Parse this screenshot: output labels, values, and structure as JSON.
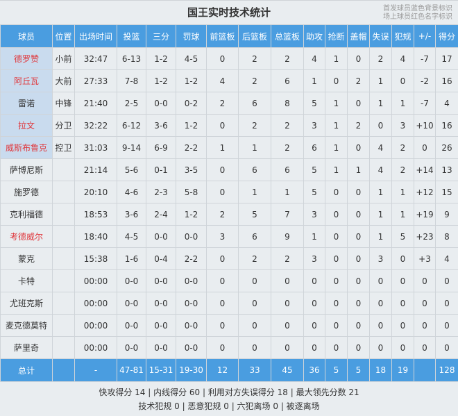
{
  "title": "国王实时技术统计",
  "legend": [
    "首发球员蓝色背景标识",
    "场上球员红色名字标识"
  ],
  "colors": {
    "header": "#4a9de0",
    "starter_bg": "#c9dbee",
    "oncourt_text": "#e0393e"
  },
  "columns": [
    "球员",
    "位置",
    "出场时间",
    "投篮",
    "三分",
    "罚球",
    "前篮板",
    "后篮板",
    "总篮板",
    "助攻",
    "抢断",
    "盖帽",
    "失误",
    "犯规",
    "+/-",
    "得分"
  ],
  "players": [
    {
      "starter": true,
      "oncourt": true,
      "cells": [
        "德罗赞",
        "小前",
        "32:47",
        "6-13",
        "1-2",
        "4-5",
        "0",
        "2",
        "2",
        "4",
        "1",
        "0",
        "2",
        "4",
        "-7",
        "17"
      ]
    },
    {
      "starter": true,
      "oncourt": true,
      "cells": [
        "阿丘瓦",
        "大前",
        "27:33",
        "7-8",
        "1-2",
        "1-2",
        "4",
        "2",
        "6",
        "1",
        "0",
        "2",
        "1",
        "0",
        "-2",
        "16"
      ]
    },
    {
      "starter": true,
      "oncourt": false,
      "cells": [
        "雷诺",
        "中锋",
        "21:40",
        "2-5",
        "0-0",
        "0-2",
        "2",
        "6",
        "8",
        "5",
        "1",
        "0",
        "1",
        "1",
        "-7",
        "4"
      ]
    },
    {
      "starter": true,
      "oncourt": true,
      "cells": [
        "拉文",
        "分卫",
        "32:22",
        "6-12",
        "3-6",
        "1-2",
        "0",
        "2",
        "2",
        "3",
        "1",
        "2",
        "0",
        "3",
        "+10",
        "16"
      ]
    },
    {
      "starter": true,
      "oncourt": true,
      "cells": [
        "威斯布鲁克",
        "控卫",
        "31:03",
        "9-14",
        "6-9",
        "2-2",
        "1",
        "1",
        "2",
        "6",
        "1",
        "0",
        "4",
        "2",
        "0",
        "26"
      ]
    },
    {
      "starter": false,
      "oncourt": false,
      "cells": [
        "萨博尼斯",
        "",
        "21:14",
        "5-6",
        "0-1",
        "3-5",
        "0",
        "6",
        "6",
        "5",
        "1",
        "1",
        "4",
        "2",
        "+14",
        "13"
      ]
    },
    {
      "starter": false,
      "oncourt": false,
      "cells": [
        "施罗德",
        "",
        "20:10",
        "4-6",
        "2-3",
        "5-8",
        "0",
        "1",
        "1",
        "5",
        "0",
        "0",
        "1",
        "1",
        "+12",
        "15"
      ]
    },
    {
      "starter": false,
      "oncourt": false,
      "cells": [
        "克利福德",
        "",
        "18:53",
        "3-6",
        "2-4",
        "1-2",
        "2",
        "5",
        "7",
        "3",
        "0",
        "0",
        "1",
        "1",
        "+19",
        "9"
      ]
    },
    {
      "starter": false,
      "oncourt": true,
      "cells": [
        "考德威尔",
        "",
        "18:40",
        "4-5",
        "0-0",
        "0-0",
        "3",
        "6",
        "9",
        "1",
        "0",
        "0",
        "1",
        "5",
        "+23",
        "8"
      ]
    },
    {
      "starter": false,
      "oncourt": false,
      "cells": [
        "蒙克",
        "",
        "15:38",
        "1-6",
        "0-4",
        "2-2",
        "0",
        "2",
        "2",
        "3",
        "0",
        "0",
        "3",
        "0",
        "+3",
        "4"
      ]
    },
    {
      "starter": false,
      "oncourt": false,
      "cells": [
        "卡特",
        "",
        "00:00",
        "0-0",
        "0-0",
        "0-0",
        "0",
        "0",
        "0",
        "0",
        "0",
        "0",
        "0",
        "0",
        "0",
        "0"
      ]
    },
    {
      "starter": false,
      "oncourt": false,
      "cells": [
        "尤班克斯",
        "",
        "00:00",
        "0-0",
        "0-0",
        "0-0",
        "0",
        "0",
        "0",
        "0",
        "0",
        "0",
        "0",
        "0",
        "0",
        "0"
      ]
    },
    {
      "starter": false,
      "oncourt": false,
      "cells": [
        "麦克德莫特",
        "",
        "00:00",
        "0-0",
        "0-0",
        "0-0",
        "0",
        "0",
        "0",
        "0",
        "0",
        "0",
        "0",
        "0",
        "0",
        "0"
      ]
    },
    {
      "starter": false,
      "oncourt": false,
      "cells": [
        "萨里奇",
        "",
        "00:00",
        "0-0",
        "0-0",
        "0-0",
        "0",
        "0",
        "0",
        "0",
        "0",
        "0",
        "0",
        "0",
        "0",
        "0"
      ]
    }
  ],
  "total": [
    "总计",
    "",
    "-",
    "47-81",
    "15-31",
    "19-30",
    "12",
    "33",
    "45",
    "36",
    "5",
    "5",
    "18",
    "19",
    "",
    "128"
  ],
  "footer": [
    "快攻得分 14 | 内线得分 60 | 利用对方失误得分 18 | 最大领先分数 21",
    "技术犯规 0 | 恶意犯规 0 | 六犯离场 0 | 被逐离场"
  ]
}
